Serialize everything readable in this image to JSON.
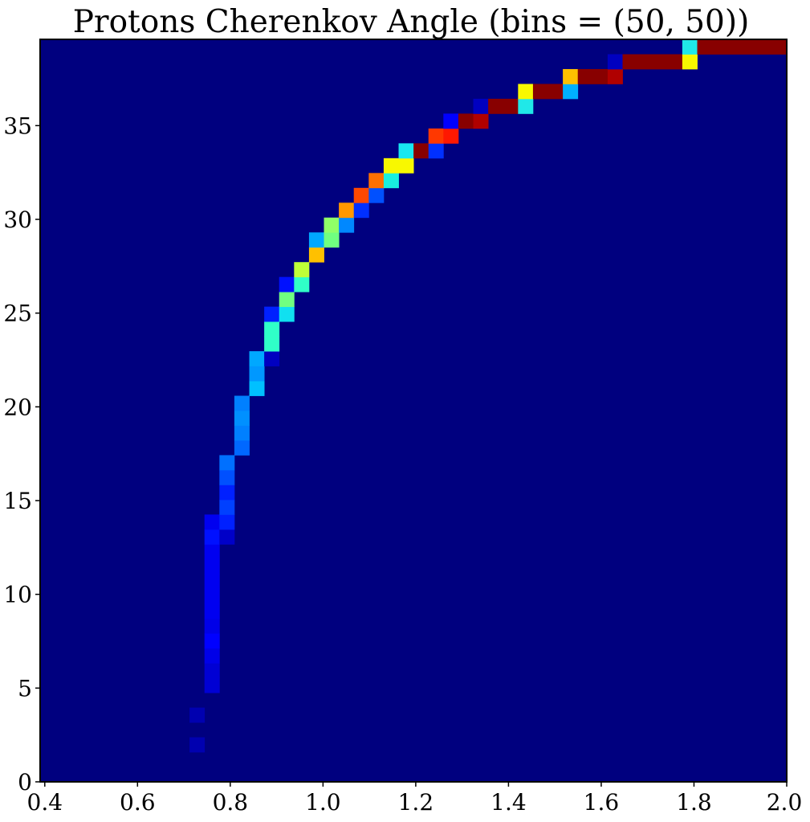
{
  "chart_data": {
    "type": "heatmap",
    "title": "Protons Cherenkov Angle (bins = (50, 50))",
    "xlabel": "",
    "ylabel": "",
    "bins": [
      50,
      50
    ],
    "colormap": "jet",
    "background_color": "#00007f",
    "xlim": [
      0.39,
      2.0
    ],
    "ylim": [
      0,
      39.6
    ],
    "ybin_width": 0.792,
    "xticks": [
      0.4,
      0.6,
      0.8,
      1.0,
      1.2,
      1.4,
      1.6,
      1.8,
      2.0
    ],
    "xtick_labels": [
      "0.4",
      "0.6",
      "0.8",
      "1.0",
      "1.2",
      "1.4",
      "1.6",
      "1.8",
      "2.0"
    ],
    "yticks": [
      0,
      5,
      10,
      15,
      20,
      25,
      30,
      35
    ],
    "ytick_labels": [
      "0",
      "5",
      "10",
      "15",
      "20",
      "25",
      "30",
      "35"
    ],
    "cells": [
      {
        "x0": 0.39,
        "x1": 0.7122,
        "y": 0,
        "color": "#800000"
      },
      {
        "x0": 0.7122,
        "x1": 0.7444,
        "y": 0,
        "color": "#ff2000"
      },
      {
        "x0": 0.7122,
        "x1": 0.7444,
        "y": 3,
        "color": "#0000b0"
      },
      {
        "x0": 0.7122,
        "x1": 0.7444,
        "y": 5,
        "color": "#0000b0"
      },
      {
        "x0": 0.7444,
        "x1": 0.7766,
        "y": 7,
        "color": "#0000d4"
      },
      {
        "x0": 0.7444,
        "x1": 0.7766,
        "y": 8,
        "color": "#0000d4"
      },
      {
        "x0": 0.7444,
        "x1": 0.7766,
        "y": 9,
        "color": "#0000e8"
      },
      {
        "x0": 0.7444,
        "x1": 0.7766,
        "y": 10,
        "color": "#0000ff"
      },
      {
        "x0": 0.7444,
        "x1": 0.7766,
        "y": 11,
        "color": "#0000e8"
      },
      {
        "x0": 0.7444,
        "x1": 0.7766,
        "y": 12,
        "color": "#0000f0"
      },
      {
        "x0": 0.7444,
        "x1": 0.7766,
        "y": 13,
        "color": "#0000f0"
      },
      {
        "x0": 0.7444,
        "x1": 0.7766,
        "y": 14,
        "color": "#0000f0"
      },
      {
        "x0": 0.7444,
        "x1": 0.7766,
        "y": 15,
        "color": "#0000f0"
      },
      {
        "x0": 0.7444,
        "x1": 0.7766,
        "y": 16,
        "color": "#0000f0"
      },
      {
        "x0": 0.7444,
        "x1": 0.7766,
        "y": 17,
        "color": "#0010ff"
      },
      {
        "x0": 0.7444,
        "x1": 0.7766,
        "y": 18,
        "color": "#0000f0"
      },
      {
        "x0": 0.7766,
        "x1": 0.8088,
        "y": 17,
        "color": "#0000c8"
      },
      {
        "x0": 0.7766,
        "x1": 0.8088,
        "y": 18,
        "color": "#0020ff"
      },
      {
        "x0": 0.7766,
        "x1": 0.8088,
        "y": 19,
        "color": "#0040ff"
      },
      {
        "x0": 0.7766,
        "x1": 0.8088,
        "y": 20,
        "color": "#0020ff"
      },
      {
        "x0": 0.7766,
        "x1": 0.8088,
        "y": 21,
        "color": "#0050ff"
      },
      {
        "x0": 0.7766,
        "x1": 0.8088,
        "y": 22,
        "color": "#0070ff"
      },
      {
        "x0": 0.8088,
        "x1": 0.841,
        "y": 23,
        "color": "#0068ff"
      },
      {
        "x0": 0.8088,
        "x1": 0.841,
        "y": 24,
        "color": "#0080ff"
      },
      {
        "x0": 0.8088,
        "x1": 0.841,
        "y": 25,
        "color": "#0090ff"
      },
      {
        "x0": 0.8088,
        "x1": 0.841,
        "y": 26,
        "color": "#0080ff"
      },
      {
        "x0": 0.841,
        "x1": 0.8732,
        "y": 27,
        "color": "#00c0ff"
      },
      {
        "x0": 0.841,
        "x1": 0.8732,
        "y": 28,
        "color": "#0098ff"
      },
      {
        "x0": 0.841,
        "x1": 0.8732,
        "y": 29,
        "color": "#00a8ff"
      },
      {
        "x0": 0.8732,
        "x1": 0.9054,
        "y": 29,
        "color": "#0000c0"
      },
      {
        "x0": 0.8732,
        "x1": 0.9054,
        "y": 30,
        "color": "#30ffc8"
      },
      {
        "x0": 0.8732,
        "x1": 0.9054,
        "y": 31,
        "color": "#30ffc8"
      },
      {
        "x0": 0.8732,
        "x1": 0.9054,
        "y": 32,
        "color": "#0020ff"
      },
      {
        "x0": 0.9054,
        "x1": 0.9376,
        "y": 32,
        "color": "#10e0f0"
      },
      {
        "x0": 0.9054,
        "x1": 0.9376,
        "y": 33,
        "color": "#70ff80"
      },
      {
        "x0": 0.9054,
        "x1": 0.9376,
        "y": 34,
        "color": "#0010ff"
      },
      {
        "x0": 0.9376,
        "x1": 0.9698,
        "y": 34,
        "color": "#30ffc8"
      },
      {
        "x0": 0.9376,
        "x1": 0.9698,
        "y": 35,
        "color": "#c0ff38"
      },
      {
        "x0": 0.9698,
        "x1": 1.002,
        "y": 36,
        "color": "#ffc000"
      },
      {
        "x0": 0.9698,
        "x1": 1.002,
        "y": 37,
        "color": "#00a8ff"
      },
      {
        "x0": 1.002,
        "x1": 1.0342,
        "y": 37,
        "color": "#70ff80"
      },
      {
        "x0": 1.002,
        "x1": 1.0342,
        "y": 38,
        "color": "#90ff68"
      },
      {
        "x0": 1.0342,
        "x1": 1.0664,
        "y": 38,
        "color": "#0088ff"
      },
      {
        "x0": 1.0342,
        "x1": 1.0664,
        "y": 39,
        "color": "#ff9800"
      },
      {
        "x0": 1.0664,
        "x1": 1.0986,
        "y": 39,
        "color": "#0030ff"
      },
      {
        "x0": 1.0664,
        "x1": 1.0986,
        "y": 40,
        "color": "#ff4800"
      },
      {
        "x0": 1.0986,
        "x1": 1.1308,
        "y": 40,
        "color": "#0050ff"
      },
      {
        "x0": 1.0986,
        "x1": 1.1308,
        "y": 41,
        "color": "#ff7000"
      },
      {
        "x0": 1.1308,
        "x1": 1.163,
        "y": 41,
        "color": "#18f0e0"
      },
      {
        "x0": 1.1308,
        "x1": 1.163,
        "y": 42,
        "color": "#f8f800"
      },
      {
        "x0": 1.163,
        "x1": 1.1952,
        "y": 42,
        "color": "#f8f800"
      },
      {
        "x0": 1.163,
        "x1": 1.1952,
        "y": 43,
        "color": "#18e8f0"
      },
      {
        "x0": 1.1952,
        "x1": 1.2274,
        "y": 43,
        "color": "#880000"
      },
      {
        "x0": 1.2274,
        "x1": 1.2596,
        "y": 43,
        "color": "#0030ff"
      },
      {
        "x0": 1.2274,
        "x1": 1.2596,
        "y": 44,
        "color": "#ff3800"
      },
      {
        "x0": 1.2596,
        "x1": 1.2918,
        "y": 44,
        "color": "#ff1800"
      },
      {
        "x0": 1.2596,
        "x1": 1.2918,
        "y": 45,
        "color": "#0000ff"
      },
      {
        "x0": 1.2918,
        "x1": 1.324,
        "y": 45,
        "color": "#880000"
      },
      {
        "x0": 1.324,
        "x1": 1.3562,
        "y": 45,
        "color": "#b00000"
      },
      {
        "x0": 1.324,
        "x1": 1.3562,
        "y": 46,
        "color": "#0000c0"
      },
      {
        "x0": 1.3562,
        "x1": 1.4206,
        "y": 46,
        "color": "#880000"
      },
      {
        "x0": 1.4206,
        "x1": 1.4528,
        "y": 46,
        "color": "#20e8e8"
      },
      {
        "x0": 1.4206,
        "x1": 1.4528,
        "y": 47,
        "color": "#f8f800"
      },
      {
        "x0": 1.4528,
        "x1": 1.5172,
        "y": 47,
        "color": "#880000"
      },
      {
        "x0": 1.5172,
        "x1": 1.5494,
        "y": 47,
        "color": "#00b0ff"
      },
      {
        "x0": 1.5172,
        "x1": 1.5494,
        "y": 48,
        "color": "#ffc000"
      },
      {
        "x0": 1.5494,
        "x1": 1.6138,
        "y": 48,
        "color": "#880000"
      },
      {
        "x0": 1.6138,
        "x1": 1.646,
        "y": 48,
        "color": "#b00000"
      },
      {
        "x0": 1.6138,
        "x1": 1.646,
        "y": 49,
        "color": "#0000c0"
      },
      {
        "x0": 1.646,
        "x1": 1.7748,
        "y": 49,
        "color": "#880000"
      },
      {
        "x0": 1.7748,
        "x1": 1.807,
        "y": 49,
        "color": "#f8f800"
      },
      {
        "x0": 1.7748,
        "x1": 1.807,
        "y": 50,
        "color": "#20e8e8"
      },
      {
        "x0": 1.807,
        "x1": 2.0,
        "y": 50,
        "color": "#880000"
      }
    ]
  }
}
